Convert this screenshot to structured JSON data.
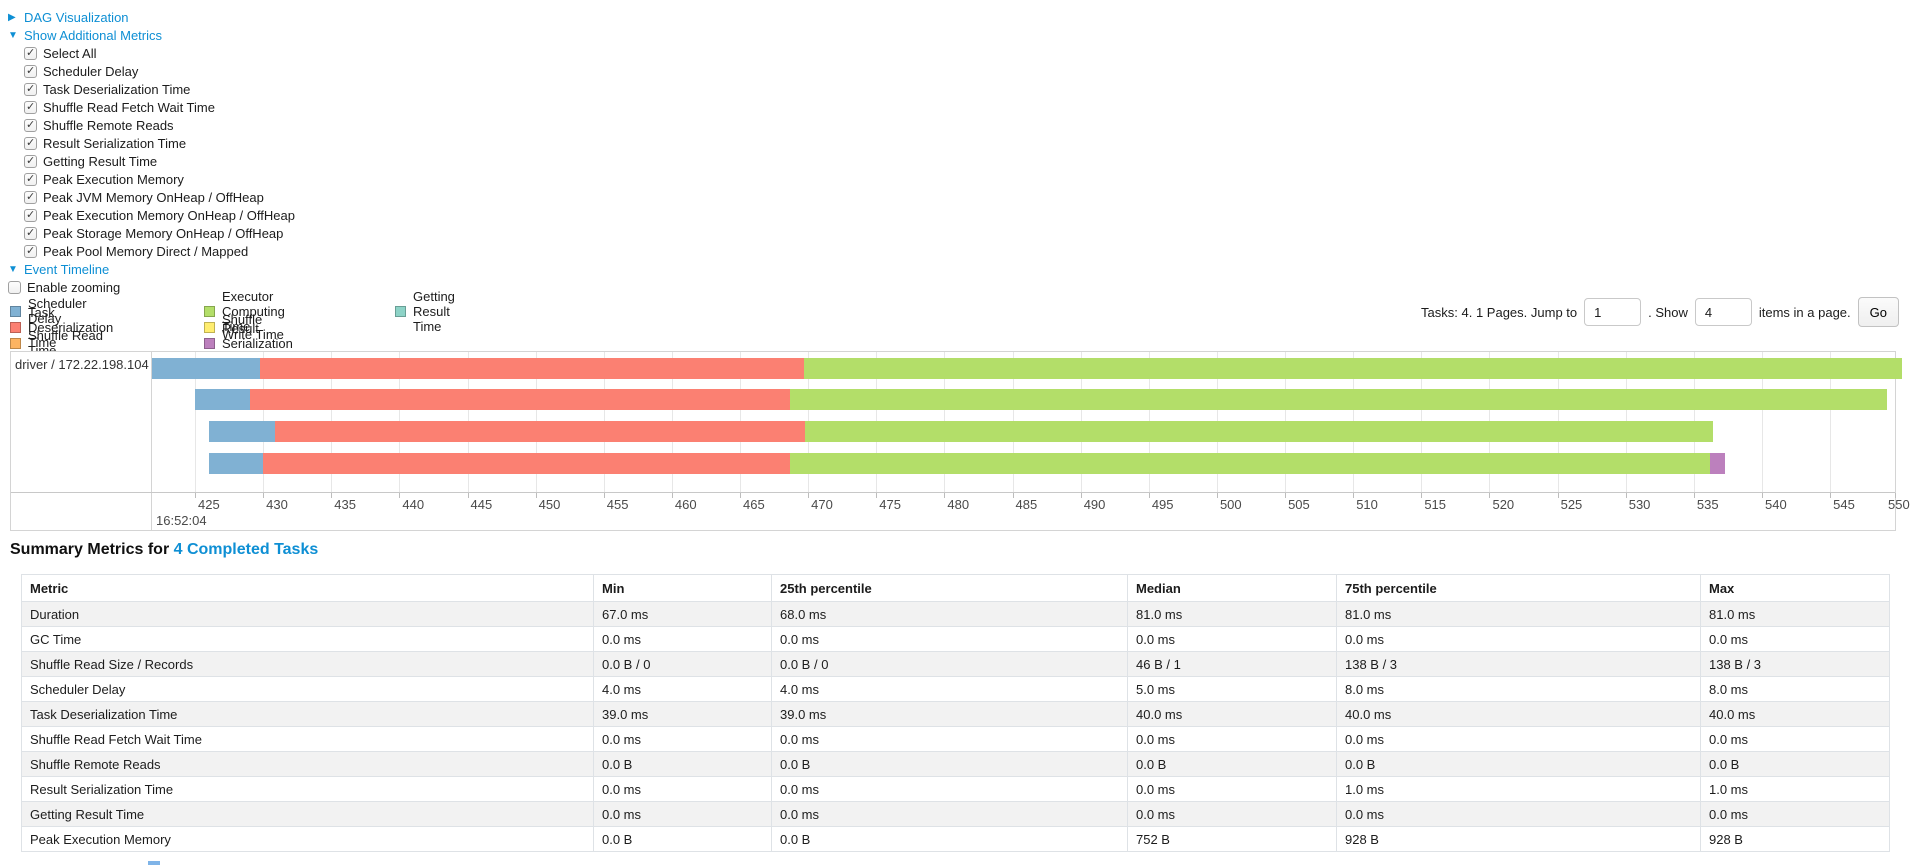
{
  "controls": {
    "dag_label": "DAG Visualization",
    "metrics_label": "Show Additional Metrics",
    "metric_checkboxes": [
      "Select All",
      "Scheduler Delay",
      "Task Deserialization Time",
      "Shuffle Read Fetch Wait Time",
      "Shuffle Remote Reads",
      "Result Serialization Time",
      "Getting Result Time",
      "Peak Execution Memory",
      "Peak JVM Memory OnHeap / OffHeap",
      "Peak Execution Memory OnHeap / OffHeap",
      "Peak Storage Memory OnHeap / OffHeap",
      "Peak Pool Memory Direct / Mapped"
    ],
    "event_timeline_label": "Event Timeline",
    "enable_zooming_label": "Enable zooming",
    "collapsed_arrow": "▶",
    "expanded_arrow": "▼"
  },
  "legend": {
    "items": [
      {
        "label": "Scheduler Delay",
        "kind": "scheduler_delay",
        "col": 0
      },
      {
        "label": "Task Deserialization Time",
        "kind": "task_deserialization",
        "col": 0
      },
      {
        "label": "Shuffle Read Time",
        "kind": "shuffle_read",
        "col": 0
      },
      {
        "label": "Executor Computing Time",
        "kind": "executor_computing",
        "col": 1
      },
      {
        "label": "Shuffle Write Time",
        "kind": "shuffle_write",
        "col": 1
      },
      {
        "label": "Result Serialization Time",
        "kind": "result_serialization",
        "col": 1
      },
      {
        "label": "Getting Result Time",
        "kind": "getting_result",
        "col": 2
      }
    ]
  },
  "pagination": {
    "prefix": "Tasks: 4. 1 Pages. Jump to",
    "jump_value": "1",
    "mid": ". Show",
    "page_size_value": "4",
    "suffix": "items in a page.",
    "go_label": "Go"
  },
  "chart_data": {
    "type": "timeline",
    "title": "Event Timeline",
    "group_label": "driver / 172.22.198.104",
    "x_axis": {
      "tick_start": 425,
      "tick_end": 550,
      "tick_step": 5,
      "visible_min": 421.8,
      "visible_max": 549.9,
      "time_anchor": "16:52:04",
      "anchor_tick": 425,
      "unit": "ms"
    },
    "series_colors": {
      "scheduler_delay": "#80B1D3",
      "task_deserialization": "#FB8072",
      "shuffle_read": "#FDB462",
      "executor_computing": "#B3DE69",
      "shuffle_write": "#FFED6F",
      "result_serialization": "#BC80BD",
      "getting_result": "#8DD3C7"
    },
    "tasks": [
      {
        "segments": [
          {
            "kind": "scheduler_delay",
            "from": 421.8,
            "to": 429.8
          },
          {
            "kind": "task_deserialization",
            "from": 429.8,
            "to": 469.7
          },
          {
            "kind": "executor_computing",
            "from": 469.7,
            "to": 550.3
          }
        ]
      },
      {
        "segments": [
          {
            "kind": "scheduler_delay",
            "from": 425.0,
            "to": 429.0
          },
          {
            "kind": "task_deserialization",
            "from": 429.0,
            "to": 468.7
          },
          {
            "kind": "executor_computing",
            "from": 468.7,
            "to": 549.2
          }
        ]
      },
      {
        "segments": [
          {
            "kind": "scheduler_delay",
            "from": 426.0,
            "to": 430.9
          },
          {
            "kind": "task_deserialization",
            "from": 430.9,
            "to": 469.8
          },
          {
            "kind": "executor_computing",
            "from": 469.8,
            "to": 536.4
          }
        ]
      },
      {
        "segments": [
          {
            "kind": "scheduler_delay",
            "from": 426.0,
            "to": 430.0
          },
          {
            "kind": "task_deserialization",
            "from": 430.0,
            "to": 468.7
          },
          {
            "kind": "executor_computing",
            "from": 468.7,
            "to": 536.2
          },
          {
            "kind": "result_serialization",
            "from": 536.2,
            "to": 537.3
          }
        ]
      }
    ]
  },
  "summary": {
    "heading_prefix": "Summary Metrics for ",
    "heading_link": "4 Completed Tasks",
    "table": {
      "headers": [
        "Metric",
        "Min",
        "25th percentile",
        "Median",
        "75th percentile",
        "Max"
      ],
      "rows": [
        [
          "Duration",
          "67.0 ms",
          "68.0 ms",
          "81.0 ms",
          "81.0 ms",
          "81.0 ms"
        ],
        [
          "GC Time",
          "0.0 ms",
          "0.0 ms",
          "0.0 ms",
          "0.0 ms",
          "0.0 ms"
        ],
        [
          "Shuffle Read Size / Records",
          "0.0 B / 0",
          "0.0 B / 0",
          "46 B / 1",
          "138 B / 3",
          "138 B / 3"
        ],
        [
          "Scheduler Delay",
          "4.0 ms",
          "4.0 ms",
          "5.0 ms",
          "8.0 ms",
          "8.0 ms"
        ],
        [
          "Task Deserialization Time",
          "39.0 ms",
          "39.0 ms",
          "40.0 ms",
          "40.0 ms",
          "40.0 ms"
        ],
        [
          "Shuffle Read Fetch Wait Time",
          "0.0 ms",
          "0.0 ms",
          "0.0 ms",
          "0.0 ms",
          "0.0 ms"
        ],
        [
          "Shuffle Remote Reads",
          "0.0 B",
          "0.0 B",
          "0.0 B",
          "0.0 B",
          "0.0 B"
        ],
        [
          "Result Serialization Time",
          "0.0 ms",
          "0.0 ms",
          "0.0 ms",
          "1.0 ms",
          "1.0 ms"
        ],
        [
          "Getting Result Time",
          "0.0 ms",
          "0.0 ms",
          "0.0 ms",
          "0.0 ms",
          "0.0 ms"
        ],
        [
          "Peak Execution Memory",
          "0.0 B",
          "0.0 B",
          "752 B",
          "928 B",
          "928 B"
        ]
      ]
    }
  }
}
